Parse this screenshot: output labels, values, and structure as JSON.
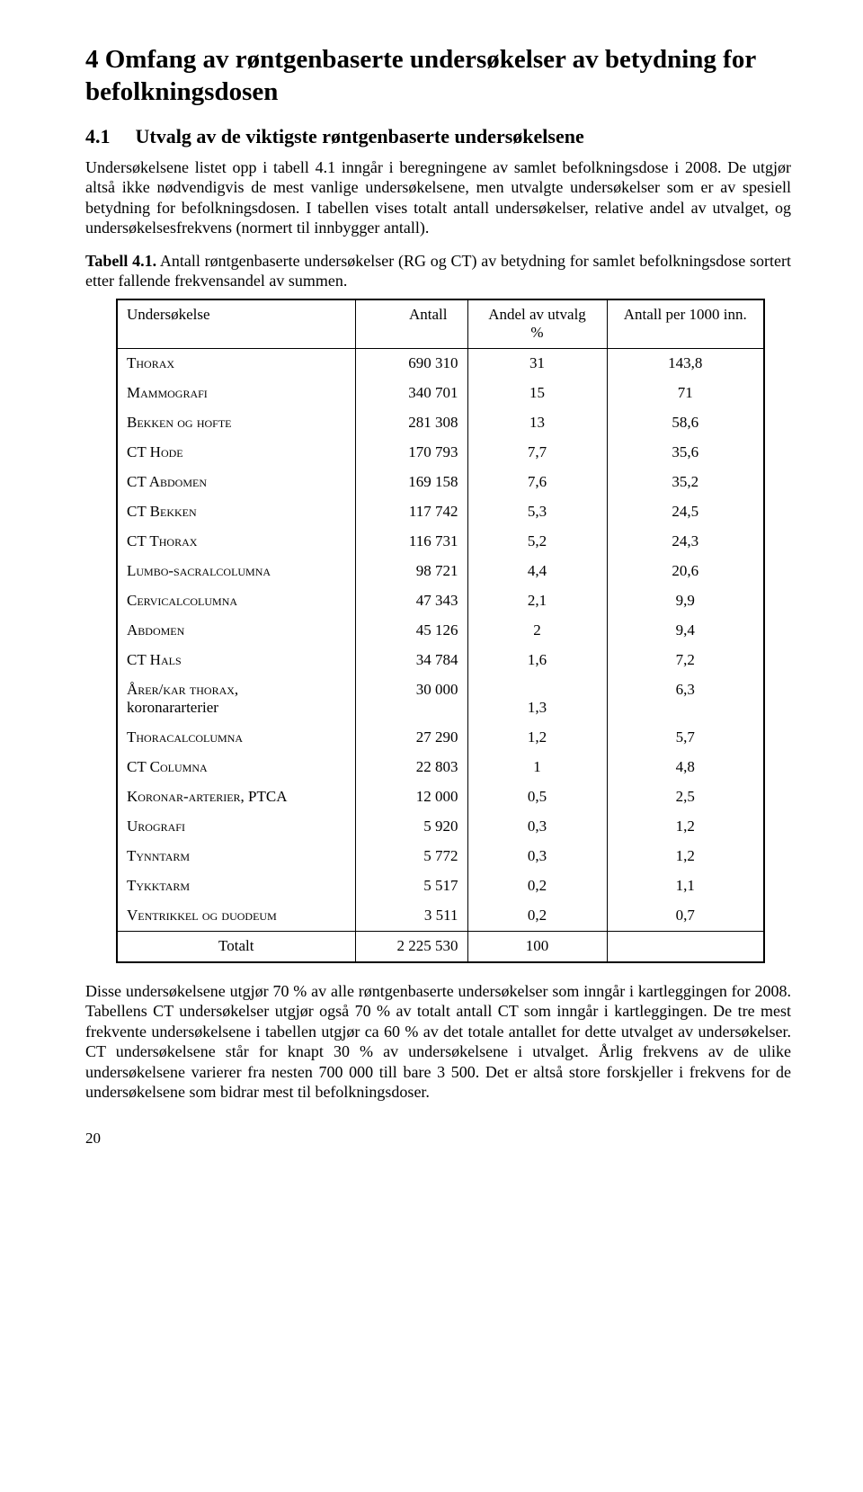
{
  "heading": "4 Omfang av røntgenbaserte undersøkelser av betydning for befolkningsdosen",
  "subheading": {
    "num": "4.1",
    "text": "Utvalg av de viktigste røntgenbaserte undersøkelsene"
  },
  "para1": "Undersøkelsene listet opp i tabell 4.1 inngår i beregningene av samlet befolkningsdose i 2008. De utgjør altså ikke nødvendigvis de mest vanlige undersøkelsene, men utvalgte undersøkelser som er av spesiell betydning for befolkningsdosen. I tabellen vises totalt antall undersøkelser, relative andel av utvalget, og undersøkelsesfrekvens (normert til innbygger antall).",
  "tableCaption_bold": "Tabell 4.1.",
  "tableCaption_rest": " Antall røntgenbaserte undersøkelser (RG og CT) av betydning for samlet befolkningsdose sortert etter fallende frekvensandel av summen.",
  "columns": [
    "Undersøkelse",
    "Antall",
    "Andel av utvalg\n%",
    "Antall per 1000 inn."
  ],
  "rows": [
    {
      "name": "Thorax",
      "antall": "690 310",
      "pct": "31",
      "per": "143,8"
    },
    {
      "name": "Mammografi",
      "antall": "340 701",
      "pct": "15",
      "per": "71"
    },
    {
      "name": "Bekken og hofte",
      "antall": "281 308",
      "pct": "13",
      "per": "58,6"
    },
    {
      "name": "CT Hode",
      "antall": "170 793",
      "pct": "7,7",
      "per": "35,6"
    },
    {
      "name": "CT Abdomen",
      "antall": "169 158",
      "pct": "7,6",
      "per": "35,2"
    },
    {
      "name": "CT Bekken",
      "antall": "117 742",
      "pct": "5,3",
      "per": "24,5"
    },
    {
      "name": "CT Thorax",
      "antall": "116 731",
      "pct": "5,2",
      "per": "24,3"
    },
    {
      "name": "Lumbo-sacralcolumna",
      "antall": "98 721",
      "pct": "4,4",
      "per": "20,6"
    },
    {
      "name": "Cervicalcolumna",
      "antall": "47 343",
      "pct": "2,1",
      "per": "9,9"
    },
    {
      "name": "Abdomen",
      "antall": "45 126",
      "pct": "2",
      "per": "9,4"
    },
    {
      "name": "CT Hals",
      "antall": "34 784",
      "pct": "1,6",
      "per": "7,2"
    },
    {
      "name": "Årer/kar thorax,",
      "name2": "koronararterier",
      "antall": "30 000",
      "pct": "1,3",
      "per": "6,3",
      "twoLine": true
    },
    {
      "name": "Thoracalcolumna",
      "antall": "27 290",
      "pct": "1,2",
      "per": "5,7"
    },
    {
      "name": "CT Columna",
      "antall": "22 803",
      "pct": "1",
      "per": "4,8"
    },
    {
      "name": "Koronar-arterier, PTCA",
      "antall": "12 000",
      "pct": "0,5",
      "per": "2,5"
    },
    {
      "name": "Urografi",
      "antall": "5 920",
      "pct": "0,3",
      "per": "1,2"
    },
    {
      "name": "Tynntarm",
      "antall": "5 772",
      "pct": "0,3",
      "per": "1,2"
    },
    {
      "name": "Tykktarm",
      "antall": "5 517",
      "pct": "0,2",
      "per": "1,1"
    },
    {
      "name": "Ventrikkel og duodeum",
      "antall": "3 511",
      "pct": "0,2",
      "per": "0,7"
    }
  ],
  "totals": {
    "label": "Totalt",
    "antall": "2 225 530",
    "pct": "100",
    "per": ""
  },
  "para2": "Disse undersøkelsene utgjør 70 % av alle røntgenbaserte undersøkelser som inngår i kartleggingen for 2008. Tabellens CT undersøkelser utgjør også 70 % av totalt antall CT som inngår i kartleggingen. De tre mest frekvente undersøkelsene i tabellen utgjør ca 60 % av det totale antallet for dette utvalget av undersøkelser. CT undersøkelsene står for knapt 30 % av undersøkelsene i utvalget. Årlig frekvens av de ulike undersøkelsene varierer fra nesten 700 000 till bare 3 500. Det er altså store forskjeller i frekvens for de undersøkelsene som bidrar mest til befolkningsdoser.",
  "pageNumber": "20"
}
